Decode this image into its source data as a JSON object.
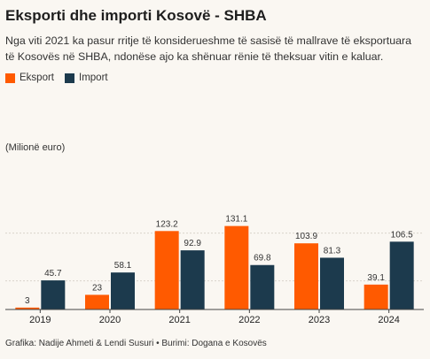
{
  "header": {
    "title": "Eksporti dhe importi Kosovë - SHBA",
    "subtitle": "Nga viti 2021 ka pasur rritje të konsiderueshme të sasisë të mallrave të eksportuara të Kosovës në SHBA, ndonëse ajo ka shënuar rënie të theksuar vitin e kaluar."
  },
  "footer": {
    "source": "Grafika: Nadije Ahmeti & Lendi Susuri • Burimi: Dogana e Kosovës"
  },
  "colors": {
    "eksport": "#ff5a00",
    "import": "#1c3a4d",
    "grid": "#d9d4cc",
    "axis": "#444444"
  },
  "chart_data": {
    "type": "bar",
    "title": "Eksporti dhe importi Kosovë - SHBA",
    "ylabel": "(Milionë euro)",
    "categories": [
      "2019",
      "2020",
      "2021",
      "2022",
      "2023",
      "2024"
    ],
    "series": [
      {
        "name": "Eksport",
        "values": [
          3,
          23,
          123.2,
          131.1,
          103.9,
          39.1
        ]
      },
      {
        "name": "Import",
        "values": [
          45.7,
          58.1,
          92.9,
          69.8,
          81.3,
          106.5
        ]
      }
    ],
    "data_labels": [
      [
        "3",
        "23",
        "123.2",
        "131.1",
        "103.9",
        "39.1"
      ],
      [
        "45.7",
        "58.1",
        "92.9",
        "69.8",
        "81.3",
        "106.5"
      ]
    ],
    "ylim": [
      0,
      130
    ],
    "grid": true,
    "legend": "top-left"
  }
}
